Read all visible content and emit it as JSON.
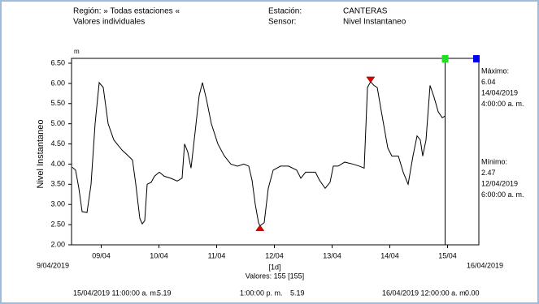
{
  "header": {
    "region_label": "Región: » Todas estaciones «",
    "mode": "Valores individuales",
    "station_label": "Estación:",
    "station": "CANTERAS",
    "sensor_label": "Sensor:",
    "sensor": "Nivel Instantaneo"
  },
  "chart_data": {
    "type": "line",
    "y_label": "Nivel Instantaneo",
    "y_unit": "m",
    "xlim": [
      9,
      16
    ],
    "x_start_label": "9/04/2019",
    "x_end_label": "16/04/2019",
    "x_interval": "[1d]",
    "count_label": "Valores: 155 [155]",
    "xticks": [
      {
        "value": 9.5,
        "label": "09/04"
      },
      {
        "value": 10.5,
        "label": "10/04"
      },
      {
        "value": 11.5,
        "label": "11/04"
      },
      {
        "value": 12.5,
        "label": "12/04"
      },
      {
        "value": 13.5,
        "label": "13/04"
      },
      {
        "value": 14.5,
        "label": "14/04"
      },
      {
        "value": 15.5,
        "label": "15/04"
      }
    ],
    "ylim": [
      2,
      6.5
    ],
    "yticks": [
      {
        "value": 2,
        "label": "2.00"
      },
      {
        "value": 2.5,
        "label": "2.50"
      },
      {
        "value": 3,
        "label": "3.00"
      },
      {
        "value": 3.5,
        "label": "3.50"
      },
      {
        "value": 4,
        "label": "4.00"
      },
      {
        "value": 4.5,
        "label": "4.50"
      },
      {
        "value": 5,
        "label": "5.00"
      },
      {
        "value": 5.5,
        "label": "5.50"
      },
      {
        "value": 6,
        "label": "6.00"
      },
      {
        "value": 6.5,
        "label": "6.50"
      }
    ],
    "series": [
      {
        "color": "#000000",
        "x": [
          9.0,
          9.056,
          9.113,
          9.169,
          9.254,
          9.324,
          9.394,
          9.465,
          9.535,
          9.62,
          9.718,
          9.859,
          9.972,
          10.042,
          10.099,
          10.169,
          10.211,
          10.254,
          10.296,
          10.366,
          10.423,
          10.507,
          10.592,
          10.704,
          10.817,
          10.901,
          10.944,
          11.0,
          11.056,
          11.127,
          11.197,
          11.254,
          11.324,
          11.408,
          11.521,
          11.634,
          11.746,
          11.859,
          11.972,
          12.056,
          12.113,
          12.169,
          12.225,
          12.25,
          12.324,
          12.394,
          12.479,
          12.606,
          12.746,
          12.887,
          12.958,
          13.042,
          13.211,
          13.282,
          13.38,
          13.465,
          13.521,
          13.606,
          13.718,
          13.859,
          13.972,
          14.056,
          14.113,
          14.167,
          14.225,
          14.282,
          14.366,
          14.465,
          14.535,
          14.648,
          14.732,
          14.817,
          14.901,
          14.972,
          15.028,
          15.07,
          15.127,
          15.197,
          15.268,
          15.338,
          15.408,
          15.458
        ],
        "values": [
          3.92,
          3.85,
          3.4,
          2.82,
          2.8,
          3.5,
          5.0,
          6.02,
          5.9,
          5.0,
          4.6,
          4.35,
          4.2,
          4.1,
          3.5,
          2.65,
          2.52,
          2.6,
          3.5,
          3.55,
          3.7,
          3.8,
          3.7,
          3.65,
          3.58,
          3.65,
          4.5,
          4.3,
          3.9,
          4.8,
          5.7,
          6.02,
          5.6,
          5.0,
          4.5,
          4.2,
          4.0,
          3.95,
          4.0,
          3.95,
          3.6,
          3.0,
          2.55,
          2.47,
          2.55,
          3.4,
          3.85,
          3.95,
          3.95,
          3.85,
          3.65,
          3.8,
          3.8,
          3.6,
          3.4,
          3.55,
          3.95,
          3.95,
          4.05,
          4.0,
          3.95,
          3.9,
          5.9,
          6.04,
          5.95,
          5.9,
          5.2,
          4.4,
          4.2,
          4.2,
          3.8,
          3.5,
          4.2,
          4.7,
          4.6,
          4.2,
          4.6,
          5.95,
          5.65,
          5.3,
          5.15,
          5.19
        ]
      }
    ],
    "maximum": {
      "label": "Máximo:",
      "value": 6.04,
      "date": "14/04/2019",
      "time": "4:00:00 a. m.",
      "x": 14.167,
      "color": "#dd0000"
    },
    "minimum": {
      "label": "Mínimo:",
      "value": 2.47,
      "date": "12/04/2019",
      "time": "6:00:00 a. m.",
      "x": 12.25,
      "color": "#dd0000"
    },
    "cursors": [
      {
        "x": 15.458,
        "color": "#22dd22",
        "label": "15/04/2019 11:00:00 a. m.",
        "reading": "5.19"
      },
      {
        "x": 16,
        "color": "#0000ee",
        "label": "16/04/2019 12:00:00 a. m.",
        "reading": "0.00"
      }
    ],
    "interval": {
      "label": "1:00:00 p. m.",
      "reading": "5.19"
    }
  }
}
